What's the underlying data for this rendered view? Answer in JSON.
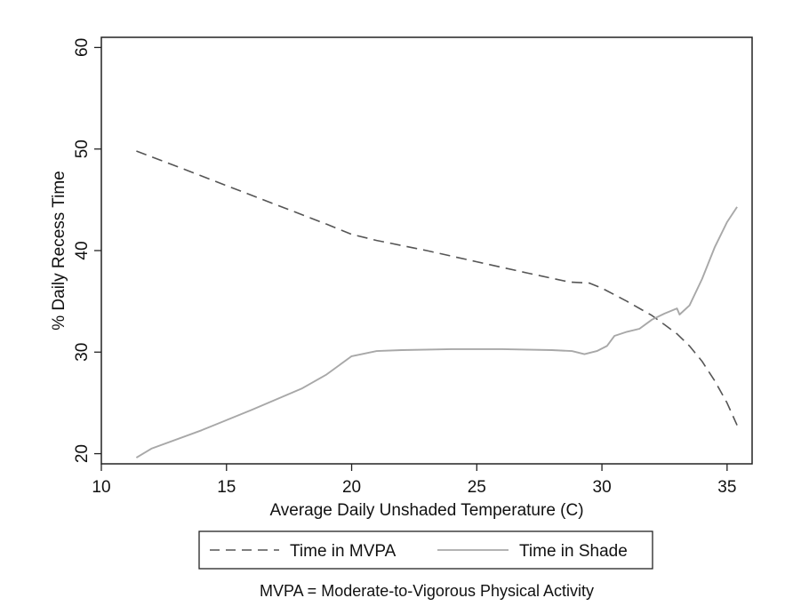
{
  "chart_data": {
    "type": "line",
    "title": "",
    "xlabel": "Average Daily Unshaded Temperature (C)",
    "ylabel": "% Daily Recess Time",
    "xlim": [
      10,
      36
    ],
    "ylim": [
      19,
      61
    ],
    "x_ticks": [
      10,
      15,
      20,
      25,
      30,
      35
    ],
    "y_ticks": [
      20,
      30,
      40,
      50,
      60
    ],
    "grid": false,
    "legend_position": "bottom",
    "note": "MVPA = Moderate-to-Vigorous Physical Activity",
    "series": [
      {
        "name": "Time in MVPA",
        "style": "dashed",
        "color": "#555555",
        "points": [
          [
            11.4,
            49.8
          ],
          [
            13,
            48.3
          ],
          [
            15,
            46.4
          ],
          [
            17,
            44.5
          ],
          [
            19,
            42.6
          ],
          [
            20,
            41.6
          ],
          [
            21,
            41.0
          ],
          [
            23,
            40.0
          ],
          [
            25,
            38.9
          ],
          [
            27,
            37.8
          ],
          [
            28.7,
            36.9
          ],
          [
            29.5,
            36.8
          ],
          [
            30,
            36.3
          ],
          [
            31,
            35.0
          ],
          [
            32,
            33.6
          ],
          [
            32.5,
            32.7
          ],
          [
            33,
            31.8
          ],
          [
            33.5,
            30.6
          ],
          [
            34,
            29.1
          ],
          [
            34.5,
            27.2
          ],
          [
            35,
            25.0
          ],
          [
            35.4,
            22.8
          ]
        ]
      },
      {
        "name": "Time in Shade",
        "style": "solid",
        "color": "#a8a8a8",
        "points": [
          [
            11.4,
            19.6
          ],
          [
            12,
            20.5
          ],
          [
            14,
            22.3
          ],
          [
            16,
            24.3
          ],
          [
            18,
            26.4
          ],
          [
            19,
            27.8
          ],
          [
            20,
            29.6
          ],
          [
            21,
            30.1
          ],
          [
            22,
            30.2
          ],
          [
            24,
            30.3
          ],
          [
            26,
            30.3
          ],
          [
            28,
            30.2
          ],
          [
            28.8,
            30.1
          ],
          [
            29.3,
            29.8
          ],
          [
            29.8,
            30.1
          ],
          [
            30.2,
            30.6
          ],
          [
            30.5,
            31.6
          ],
          [
            31,
            32.0
          ],
          [
            31.5,
            32.3
          ],
          [
            32,
            33.2
          ],
          [
            32.5,
            33.8
          ],
          [
            33,
            34.3
          ],
          [
            33.1,
            33.7
          ],
          [
            33.5,
            34.6
          ],
          [
            34,
            37.2
          ],
          [
            34.5,
            40.3
          ],
          [
            35,
            42.8
          ],
          [
            35.4,
            44.3
          ]
        ]
      }
    ]
  }
}
